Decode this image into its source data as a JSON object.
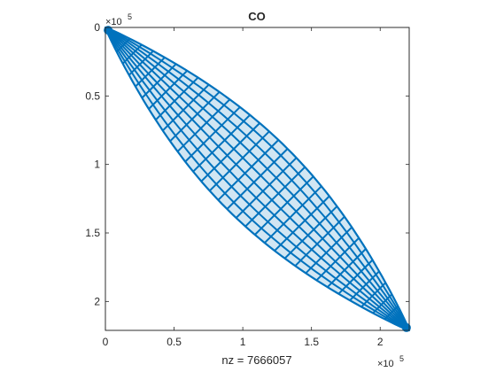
{
  "chart_data": {
    "type": "spy",
    "title": "CO",
    "xlabel": "nz = 7666057",
    "ylabel": "",
    "nz": 7666057,
    "matrix_size": [
      221119,
      221119
    ],
    "xlim": [
      0,
      2.21119
    ],
    "ylim": [
      2.21119,
      0
    ],
    "y_reversed": true,
    "x_ticks": [
      0,
      0.5,
      1,
      1.5,
      2
    ],
    "y_ticks": [
      0,
      0.5,
      1,
      1.5,
      2
    ],
    "x_tick_labels": [
      "0",
      "0.5",
      "1",
      "1.5",
      "2"
    ],
    "y_tick_labels": [
      "0",
      "0.5",
      "1",
      "1.5",
      "2"
    ],
    "x_exponent_label": "×10",
    "x_exponent_power": "5",
    "y_exponent_label": "×10",
    "y_exponent_power": "5",
    "marker_color": "#0072BD",
    "pattern": "banded diagonal, lens-shaped envelope with mesh lines; band widest at center",
    "grid": false,
    "legend": "none"
  }
}
